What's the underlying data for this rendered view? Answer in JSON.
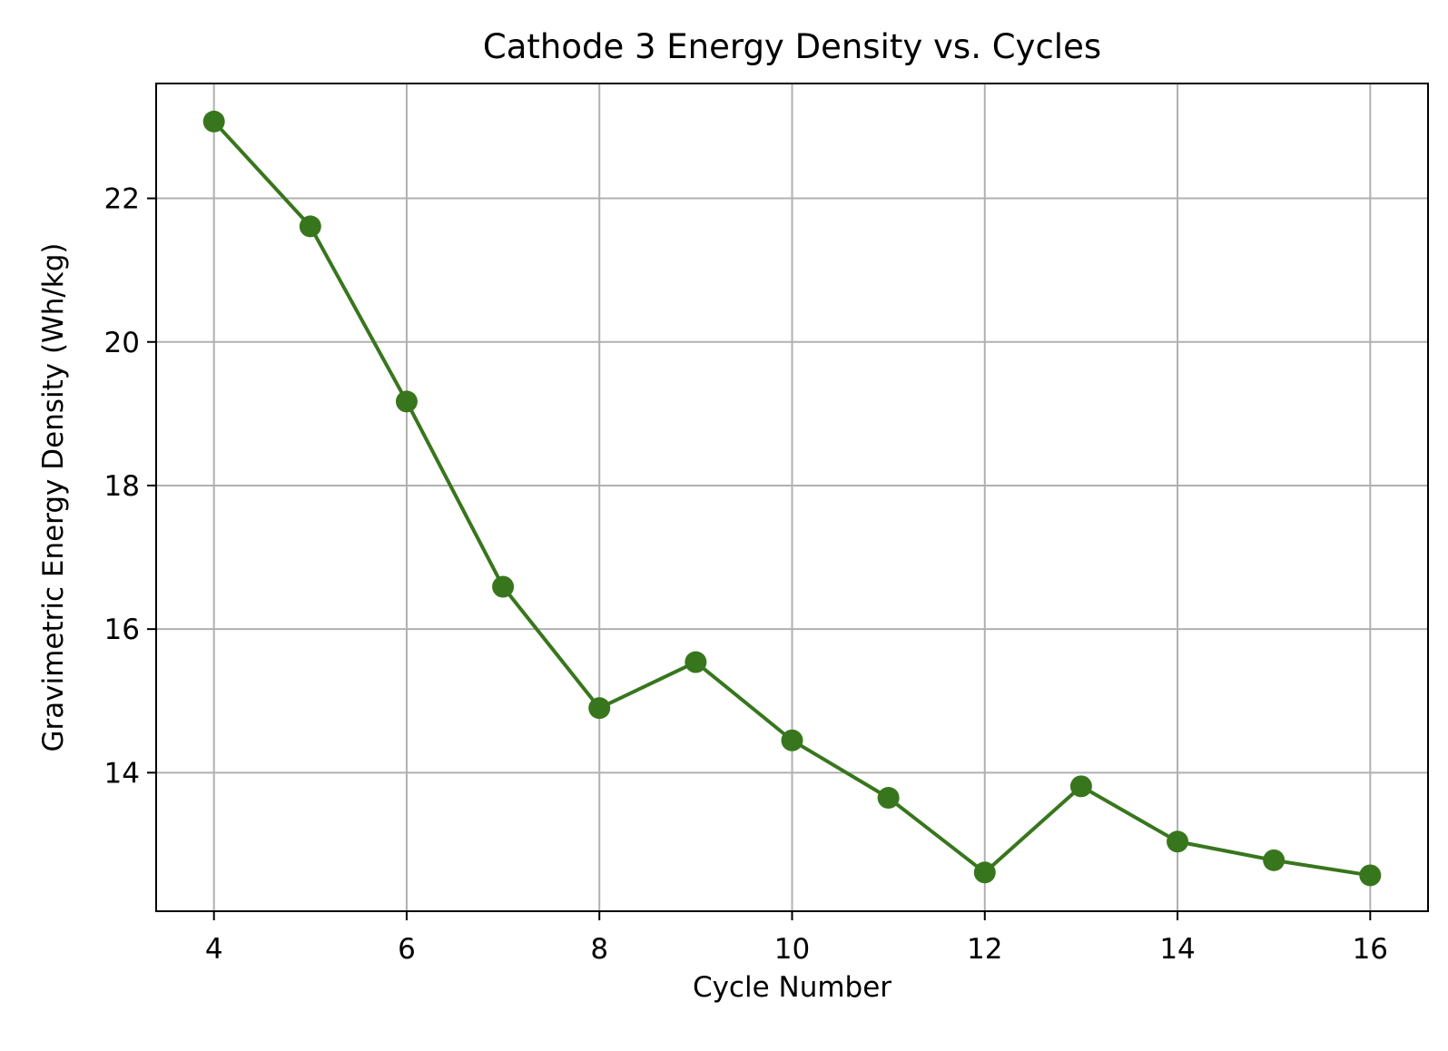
{
  "chart_data": {
    "type": "line",
    "title": "Cathode 3 Energy Density vs. Cycles",
    "xlabel": "Cycle Number",
    "ylabel": "Gravimetric Energy Density (Wh/kg)",
    "xlim": [
      3.4,
      16.6
    ],
    "ylim": [
      12.07,
      23.6
    ],
    "xticks": [
      4,
      6,
      8,
      10,
      12,
      14,
      16
    ],
    "yticks": [
      14,
      16,
      18,
      20,
      22
    ],
    "grid": true,
    "legend": "none",
    "series": [
      {
        "color": "#38761d",
        "marker": "circle",
        "x": [
          4,
          5,
          6,
          7,
          8,
          9,
          10,
          11,
          12,
          13,
          14,
          15,
          16
        ],
        "y": [
          23.07,
          21.61,
          19.17,
          16.59,
          14.9,
          15.54,
          14.45,
          13.65,
          12.61,
          13.81,
          13.04,
          12.78,
          12.57
        ]
      }
    ]
  }
}
